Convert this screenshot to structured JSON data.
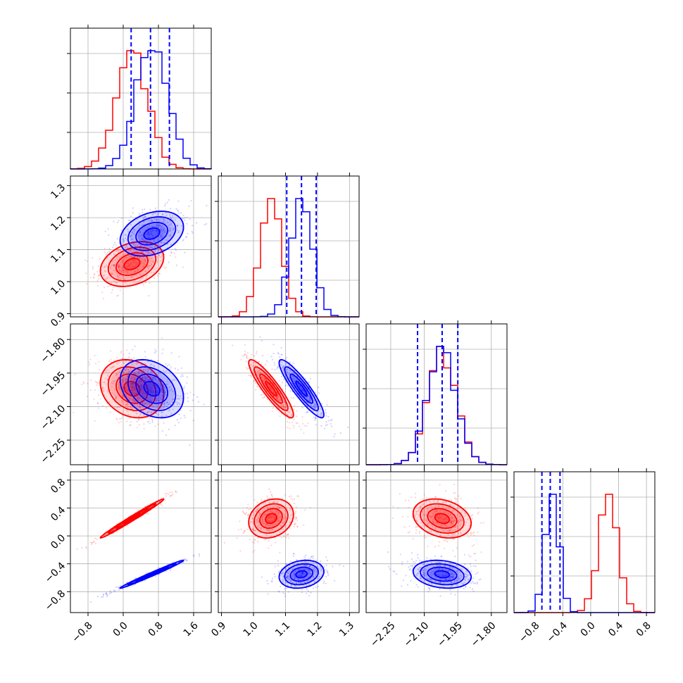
{
  "chart_data": {
    "type": "corner",
    "n_params": 4,
    "grid": true,
    "series_colors": [
      "#ff0000",
      "#0000ff"
    ],
    "quantile_color": "#0000ff",
    "params": [
      {
        "range": [
          -1.2,
          2.0
        ],
        "ticks": [
          -0.8,
          0.0,
          0.8,
          1.6
        ],
        "tick_labels": [
          "−0.8",
          "0.0",
          "0.8",
          "1.6"
        ]
      },
      {
        "range": [
          0.89,
          1.33
        ],
        "ticks": [
          0.9,
          1.0,
          1.1,
          1.2,
          1.3
        ],
        "tick_labels": [
          "0.9",
          "1.0",
          "1.1",
          "1.2",
          "1.3"
        ]
      },
      {
        "range": [
          -2.36,
          -1.73
        ],
        "ticks": [
          -2.25,
          -2.1,
          -1.95,
          -1.8
        ],
        "tick_labels": [
          "−2.25",
          "−2.10",
          "−1.95",
          "−1.80"
        ]
      },
      {
        "range": [
          -1.1,
          0.92
        ],
        "ticks": [
          -0.8,
          -0.4,
          0.0,
          0.4,
          0.8
        ],
        "tick_labels": [
          "−0.8",
          "−0.4",
          "0.0",
          "0.4",
          "0.8"
        ]
      }
    ],
    "posteriors": [
      {
        "color": "#ff0000",
        "mean": [
          0.2,
          1.055,
          -2.02,
          0.25
        ],
        "std": [
          0.36,
          0.035,
          0.065,
          0.14
        ],
        "corr": [
          [
            1,
            0.3,
            -0.2,
            0.99
          ],
          [
            0.3,
            1,
            -0.9,
            0.2
          ],
          [
            -0.2,
            -0.9,
            1,
            -0.25
          ],
          [
            0.99,
            0.2,
            -0.25,
            1
          ]
        ]
      },
      {
        "color": "#0000ff",
        "mean": [
          0.65,
          1.15,
          -2.02,
          -0.55
        ],
        "std": [
          0.36,
          0.035,
          0.065,
          0.1
        ],
        "corr": [
          [
            1,
            0.3,
            -0.3,
            0.99
          ],
          [
            0.3,
            1,
            -0.9,
            0.2
          ],
          [
            -0.3,
            -0.9,
            1,
            -0.2
          ],
          [
            0.99,
            0.2,
            -0.2,
            1
          ]
        ]
      }
    ],
    "quantiles_blue": [
      [
        0.18,
        0.62,
        1.05
      ],
      [
        1.104,
        1.15,
        1.196
      ],
      [
        -2.13,
        -2.02,
        -1.95
      ],
      [
        -0.7,
        -0.58,
        -0.44
      ]
    ]
  }
}
